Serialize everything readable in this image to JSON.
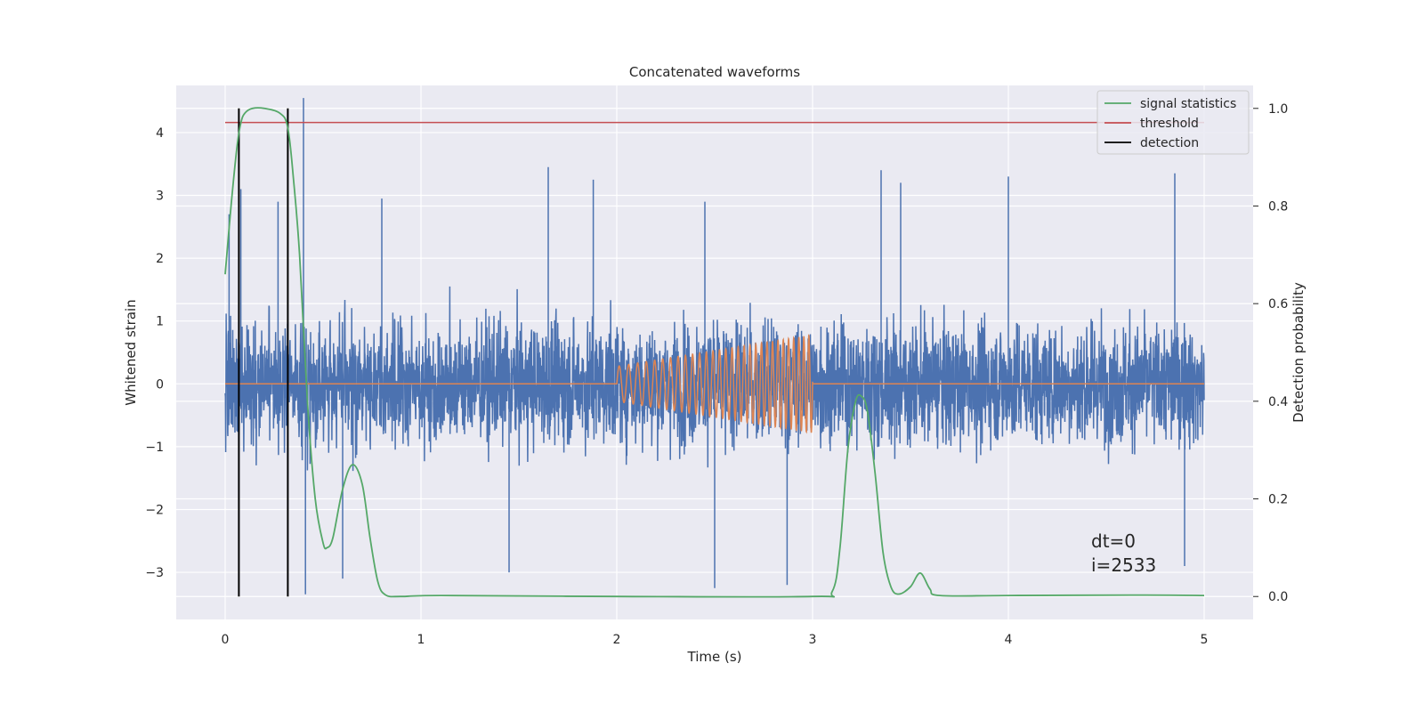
{
  "chart_data": {
    "type": "line",
    "title": "Concatenated waveforms",
    "xlabel": "Time (s)",
    "ylabel": "Whitened strain",
    "y2label": "Detection probability",
    "xlim": [
      -0.25,
      5.25
    ],
    "ylim": [
      -3.75,
      4.75
    ],
    "y2lim": [
      -0.047,
      1.047
    ],
    "xticks": [
      0,
      1,
      2,
      3,
      4,
      5
    ],
    "yticks": [
      4,
      3,
      2,
      1,
      0,
      -1,
      -2,
      -3
    ],
    "y2ticks": [
      1.0,
      0.8,
      0.6,
      0.4,
      0.2,
      0.0
    ],
    "grid": true,
    "legend_position": "upper right",
    "annotation": [
      "dt=0",
      "i=2533"
    ],
    "colors": {
      "background": "#eaeaf2",
      "strain": "#4c72b0",
      "injection": "#dd8452",
      "signal_statistics": "#55a868",
      "threshold": "#c44e52",
      "detection": "#000000"
    },
    "series": [
      {
        "name": "",
        "role": "strain",
        "x_range": [
          0,
          5
        ],
        "envelope_typical": 1.4,
        "peaks": [
          [
            0.02,
            2.7
          ],
          [
            0.08,
            3.1
          ],
          [
            0.27,
            2.9
          ],
          [
            0.4,
            4.55
          ],
          [
            0.8,
            2.95
          ],
          [
            1.65,
            3.45
          ],
          [
            1.88,
            3.25
          ],
          [
            2.45,
            2.9
          ],
          [
            3.35,
            3.4
          ],
          [
            3.45,
            3.2
          ],
          [
            4.0,
            3.3
          ],
          [
            4.85,
            3.35
          ]
        ],
        "troughs": [
          [
            0.41,
            -3.35
          ],
          [
            0.6,
            -3.1
          ],
          [
            1.45,
            -3.0
          ],
          [
            2.5,
            -3.25
          ],
          [
            2.87,
            -3.2
          ],
          [
            4.9,
            -2.9
          ]
        ]
      },
      {
        "name": "",
        "role": "injection",
        "x": [
          0,
          2,
          2,
          3,
          3,
          5
        ],
        "amplitude": [
          0,
          0,
          0.28,
          0.78,
          0,
          0
        ],
        "frequency_hz": [
          0,
          0,
          20,
          40,
          0,
          0
        ]
      },
      {
        "name": "signal statistics",
        "axis": "right",
        "x": [
          0.0,
          0.03,
          0.06,
          0.08,
          0.1,
          0.14,
          0.2,
          0.28,
          0.32,
          0.35,
          0.38,
          0.42,
          0.46,
          0.5,
          0.52,
          0.55,
          0.6,
          0.65,
          0.7,
          0.74,
          0.78,
          0.82,
          0.9,
          1.1,
          2.0,
          3.0,
          3.1,
          3.14,
          3.18,
          3.22,
          3.25,
          3.28,
          3.32,
          3.36,
          3.4,
          3.44,
          3.5,
          3.55,
          3.6,
          3.65,
          4.0,
          4.7,
          5.0
        ],
        "y": [
          0.66,
          0.8,
          0.92,
          0.97,
          0.99,
          1.0,
          1.0,
          0.99,
          0.96,
          0.85,
          0.7,
          0.4,
          0.2,
          0.11,
          0.1,
          0.12,
          0.22,
          0.27,
          0.23,
          0.12,
          0.03,
          0.003,
          0.0,
          0.002,
          0.0,
          0.0,
          0.01,
          0.1,
          0.3,
          0.4,
          0.41,
          0.38,
          0.25,
          0.09,
          0.02,
          0.005,
          0.02,
          0.048,
          0.015,
          0.002,
          0.002,
          0.003,
          0.002
        ]
      },
      {
        "name": "threshold",
        "axis": "left",
        "x": [
          0,
          5
        ],
        "y": [
          4.16,
          4.16
        ]
      },
      {
        "name": "detection",
        "axis": "left",
        "vlines_x": [
          0.07,
          0.32
        ]
      }
    ]
  }
}
